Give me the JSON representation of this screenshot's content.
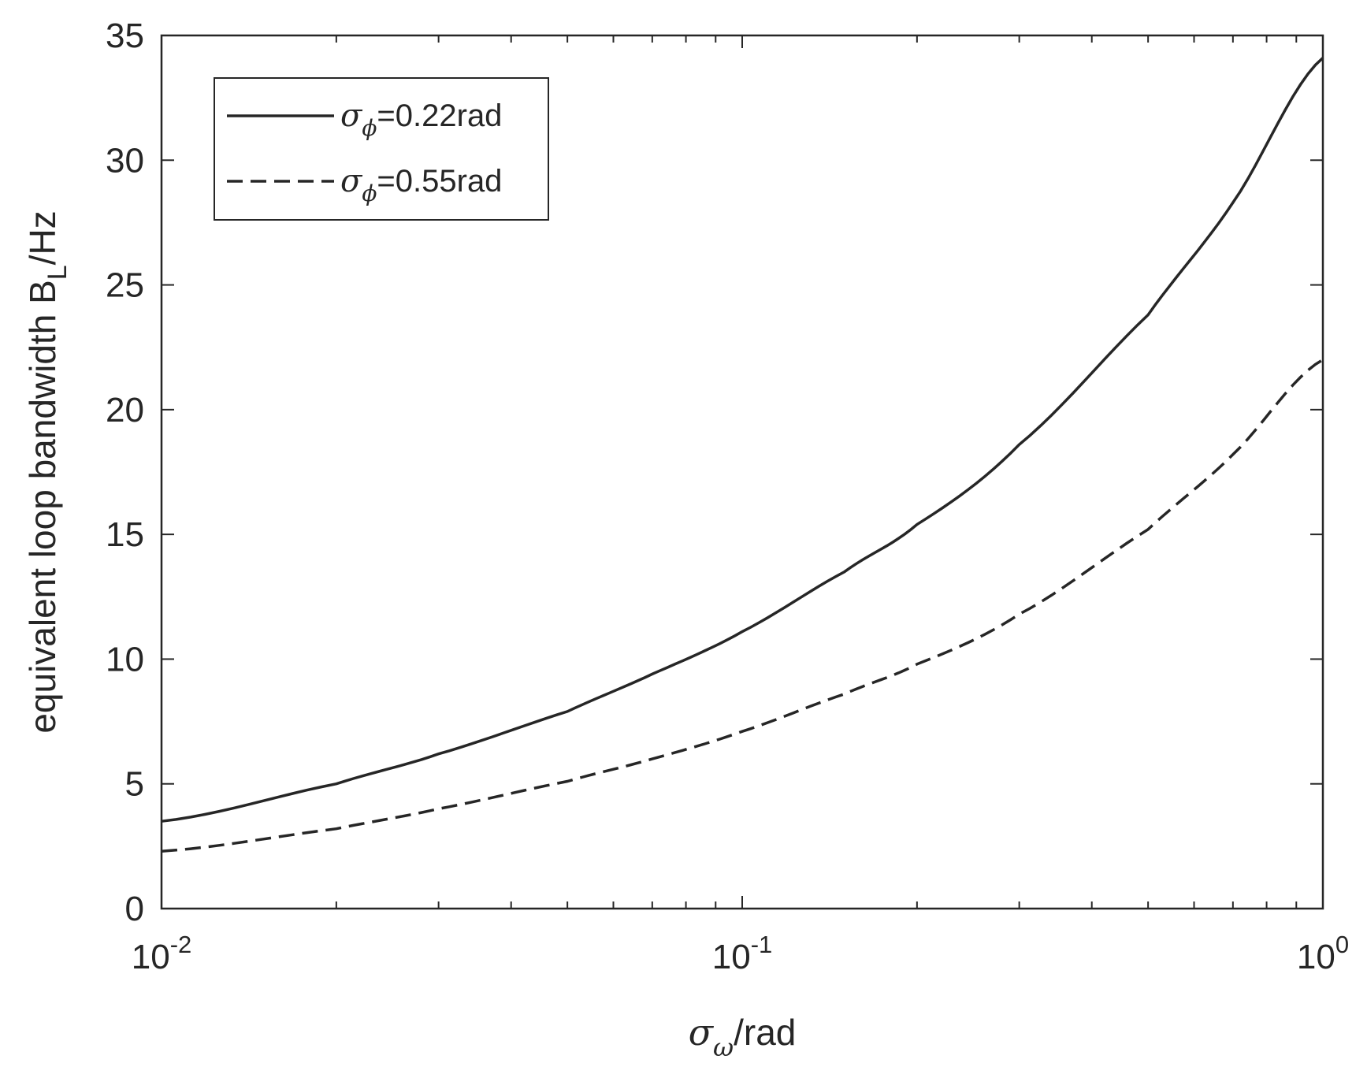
{
  "chart_data": {
    "type": "line",
    "x_scale": "log",
    "xlim": [
      0.01,
      1
    ],
    "ylim": [
      0,
      35
    ],
    "grid": false,
    "xlabel": {
      "symbol": "σ",
      "subscript": "ω",
      "suffix": "/rad"
    },
    "ylabel": {
      "text": "equivalent loop bandwidth B",
      "subscript": "L",
      "suffix": "/Hz"
    },
    "x_ticks": [
      {
        "value": 0.01,
        "base": "10",
        "exp": "-2"
      },
      {
        "value": 0.1,
        "base": "10",
        "exp": "-1"
      },
      {
        "value": 1,
        "base": "10",
        "exp": "0"
      }
    ],
    "y_ticks": [
      0,
      5,
      10,
      15,
      20,
      25,
      30,
      35
    ],
    "legend_position": "top-left",
    "series": [
      {
        "label": {
          "symbol": "σ",
          "subscript": "ϕ",
          "text": "=0.22rad"
        },
        "style": "solid",
        "color": "#262626",
        "x": [
          0.01,
          0.02,
          0.03,
          0.05,
          0.07,
          0.1,
          0.15,
          0.2,
          0.3,
          0.5,
          0.7,
          1.0
        ],
        "y": [
          3.5,
          5.0,
          6.2,
          7.9,
          9.4,
          11.1,
          13.5,
          15.4,
          18.6,
          23.8,
          28.3,
          34.1
        ]
      },
      {
        "label": {
          "symbol": "σ",
          "subscript": "ϕ",
          "text": "=0.55rad"
        },
        "style": "dashed",
        "color": "#262626",
        "x": [
          0.01,
          0.02,
          0.03,
          0.05,
          0.07,
          0.1,
          0.15,
          0.2,
          0.3,
          0.5,
          0.7,
          1.0
        ],
        "y": [
          2.3,
          3.2,
          4.0,
          5.1,
          6.0,
          7.1,
          8.6,
          9.8,
          11.8,
          15.2,
          18.2,
          22.0
        ]
      }
    ]
  }
}
